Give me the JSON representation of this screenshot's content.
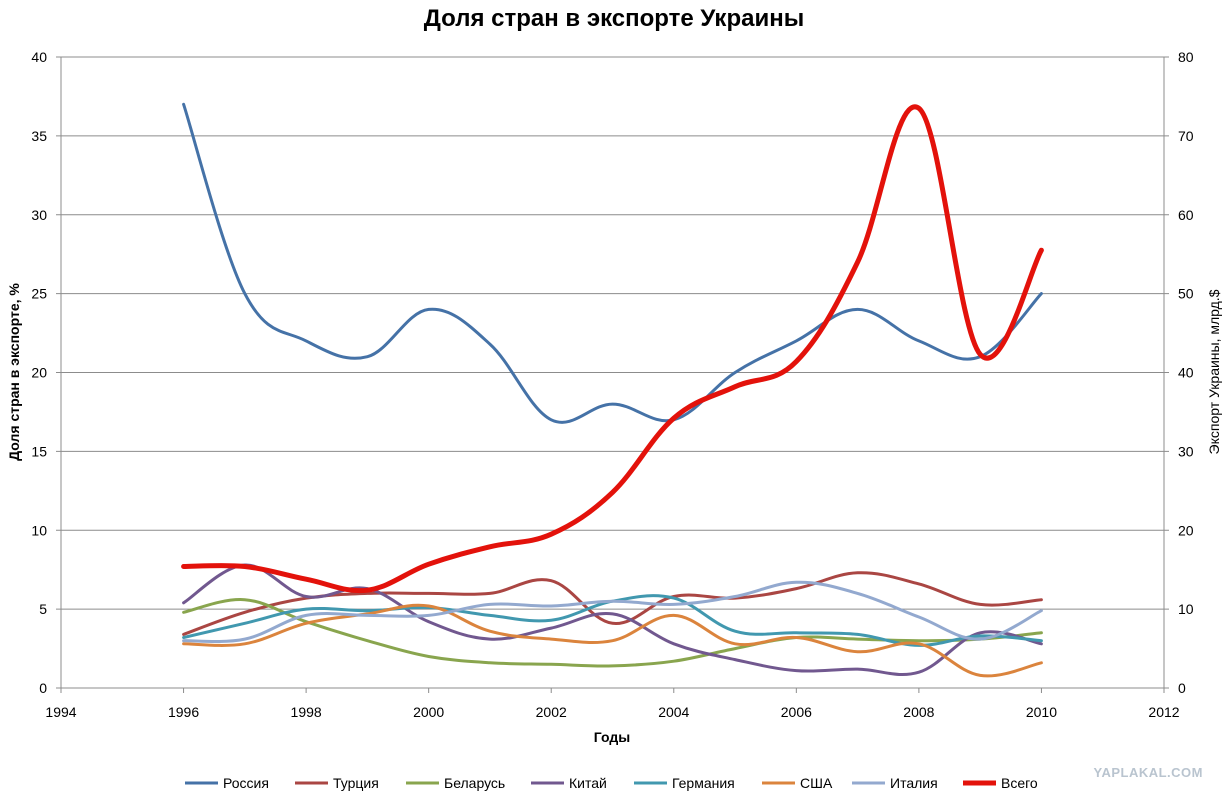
{
  "chart_data": {
    "type": "line",
    "title": "Доля стран в экспорте Украины",
    "xlabel": "Годы",
    "ylabel": "Доля стран в экспорте, %",
    "y2label": "Экспорт Украины, млрд.$",
    "xlim": [
      1994,
      2012
    ],
    "ylim": [
      0,
      40
    ],
    "y2lim": [
      0,
      80
    ],
    "x_ticks": [
      "1994",
      "1996",
      "1998",
      "2000",
      "2002",
      "2004",
      "2006",
      "2008",
      "2010",
      "2012"
    ],
    "y_ticks": [
      "0",
      "5",
      "10",
      "15",
      "20",
      "25",
      "30",
      "35",
      "40"
    ],
    "y2_ticks": [
      "0",
      "10",
      "20",
      "30",
      "40",
      "50",
      "60",
      "70",
      "80"
    ],
    "grid": "horizontal",
    "legend_position": "bottom",
    "x": [
      1996,
      1997,
      1998,
      1999,
      2000,
      2001,
      2002,
      2003,
      2004,
      2005,
      2006,
      2007,
      2008,
      2009,
      2010
    ],
    "series": [
      {
        "name": "Россия",
        "color": "#4572a7",
        "axis": "left",
        "values": [
          37,
          25,
          22,
          21,
          24,
          21.8,
          17,
          18,
          17,
          20,
          22,
          24,
          22,
          21,
          25
        ]
      },
      {
        "name": "Турция",
        "color": "#aa4643",
        "axis": "left",
        "values": [
          3.4,
          4.8,
          5.7,
          6.0,
          6.0,
          6.0,
          6.8,
          4.1,
          5.8,
          5.7,
          6.3,
          7.3,
          6.6,
          5.3,
          5.6
        ]
      },
      {
        "name": "Беларусь",
        "color": "#89a54e",
        "axis": "left",
        "values": [
          4.8,
          5.6,
          4.2,
          3.0,
          2.0,
          1.6,
          1.5,
          1.4,
          1.7,
          2.5,
          3.2,
          3.1,
          3.0,
          3.1,
          3.5
        ]
      },
      {
        "name": "Китай",
        "color": "#71588f",
        "axis": "left",
        "values": [
          5.4,
          7.8,
          5.8,
          6.3,
          4.2,
          3.1,
          3.8,
          4.7,
          2.8,
          1.8,
          1.1,
          1.2,
          1.0,
          3.5,
          2.8
        ]
      },
      {
        "name": "Германия",
        "color": "#4198af",
        "axis": "left",
        "values": [
          3.2,
          4.1,
          5.0,
          4.9,
          5.1,
          4.6,
          4.3,
          5.5,
          5.7,
          3.6,
          3.5,
          3.4,
          2.7,
          3.3,
          3.0
        ]
      },
      {
        "name": "США",
        "color": "#db843d",
        "axis": "left",
        "values": [
          2.8,
          2.8,
          4.1,
          4.7,
          5.2,
          3.6,
          3.1,
          3.0,
          4.6,
          2.8,
          3.2,
          2.3,
          2.8,
          0.8,
          1.6
        ]
      },
      {
        "name": "Италия",
        "color": "#93a9cf",
        "axis": "left",
        "values": [
          3.0,
          3.1,
          4.6,
          4.6,
          4.6,
          5.3,
          5.2,
          5.5,
          5.3,
          5.8,
          6.7,
          6.0,
          4.5,
          3.1,
          4.9
        ]
      },
      {
        "name": "Всего",
        "color": "#e3120b",
        "axis": "right",
        "values": [
          15.4,
          15.4,
          13.8,
          12.4,
          15.7,
          17.9,
          19.5,
          24.8,
          34.2,
          38.2,
          41.4,
          54.0,
          73.5,
          42.3,
          55.5
        ]
      }
    ]
  },
  "watermark": "YAPLAKAL.COM"
}
